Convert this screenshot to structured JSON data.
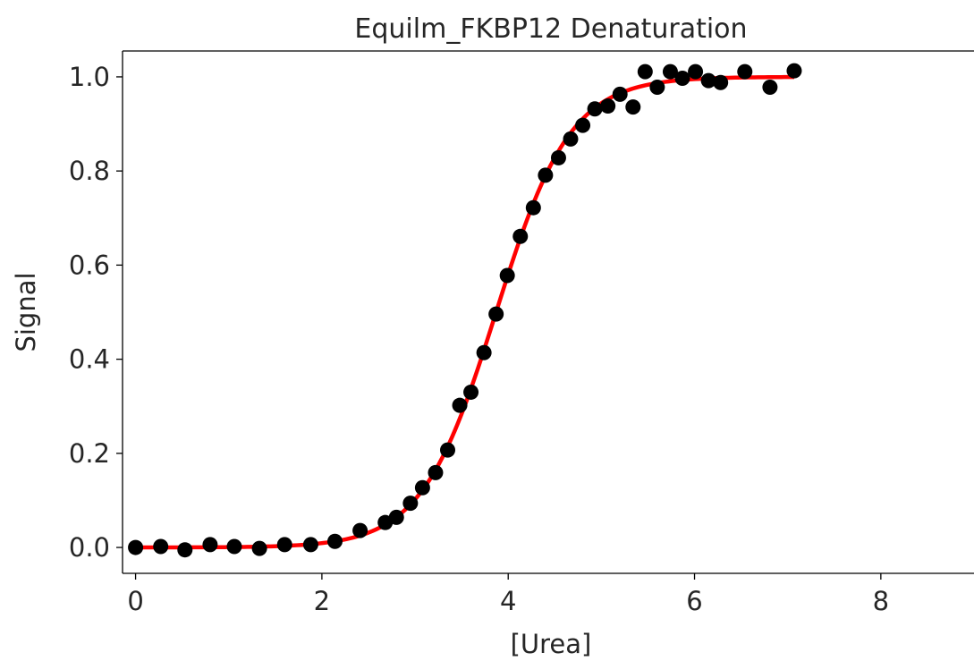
{
  "chart_data": {
    "type": "scatter",
    "title": "Equilm_FKBP12 Denaturation",
    "xlabel": "[Urea]",
    "ylabel": "Signal",
    "xlim": [
      -0.14,
      9.0
    ],
    "ylim": [
      -0.055,
      1.055
    ],
    "x_ticks": [
      0,
      2,
      4,
      6,
      8
    ],
    "y_ticks": [
      0.0,
      0.2,
      0.4,
      0.6,
      0.8,
      1.0
    ],
    "x_tick_labels": [
      "0",
      "2",
      "4",
      "6",
      "8"
    ],
    "y_tick_labels": [
      "0.0",
      "0.2",
      "0.4",
      "0.6",
      "0.8",
      "1.0"
    ],
    "grid": false,
    "legend": "none",
    "series": [
      {
        "kind": "scatter",
        "color": "#000000",
        "points": [
          [
            0.0,
            0.0
          ],
          [
            0.27,
            0.002
          ],
          [
            0.53,
            -0.005
          ],
          [
            0.8,
            0.006
          ],
          [
            1.06,
            0.002
          ],
          [
            1.33,
            -0.002
          ],
          [
            1.6,
            0.006
          ],
          [
            1.88,
            0.006
          ],
          [
            2.14,
            0.013
          ],
          [
            2.41,
            0.036
          ],
          [
            2.68,
            0.053
          ],
          [
            2.8,
            0.064
          ],
          [
            2.95,
            0.094
          ],
          [
            3.08,
            0.127
          ],
          [
            3.22,
            0.159
          ],
          [
            3.35,
            0.207
          ],
          [
            3.48,
            0.302
          ],
          [
            3.6,
            0.33
          ],
          [
            3.74,
            0.414
          ],
          [
            3.87,
            0.496
          ],
          [
            3.99,
            0.578
          ],
          [
            4.13,
            0.661
          ],
          [
            4.27,
            0.722
          ],
          [
            4.4,
            0.791
          ],
          [
            4.54,
            0.828
          ],
          [
            4.67,
            0.868
          ],
          [
            4.8,
            0.897
          ],
          [
            4.93,
            0.932
          ],
          [
            5.07,
            0.938
          ],
          [
            5.2,
            0.963
          ],
          [
            5.34,
            0.936
          ],
          [
            5.47,
            1.011
          ],
          [
            5.6,
            0.978
          ],
          [
            5.74,
            1.011
          ],
          [
            5.87,
            0.997
          ],
          [
            6.01,
            1.011
          ],
          [
            6.15,
            0.992
          ],
          [
            6.28,
            0.988
          ],
          [
            6.54,
            1.011
          ],
          [
            6.81,
            0.978
          ],
          [
            7.07,
            1.013
          ]
        ]
      },
      {
        "kind": "line",
        "color": "#ff0000",
        "fit": {
          "model": "sigmoid",
          "midpoint": 3.87,
          "slope": 0.4,
          "x_range": [
            0.0,
            7.07
          ]
        }
      }
    ]
  }
}
